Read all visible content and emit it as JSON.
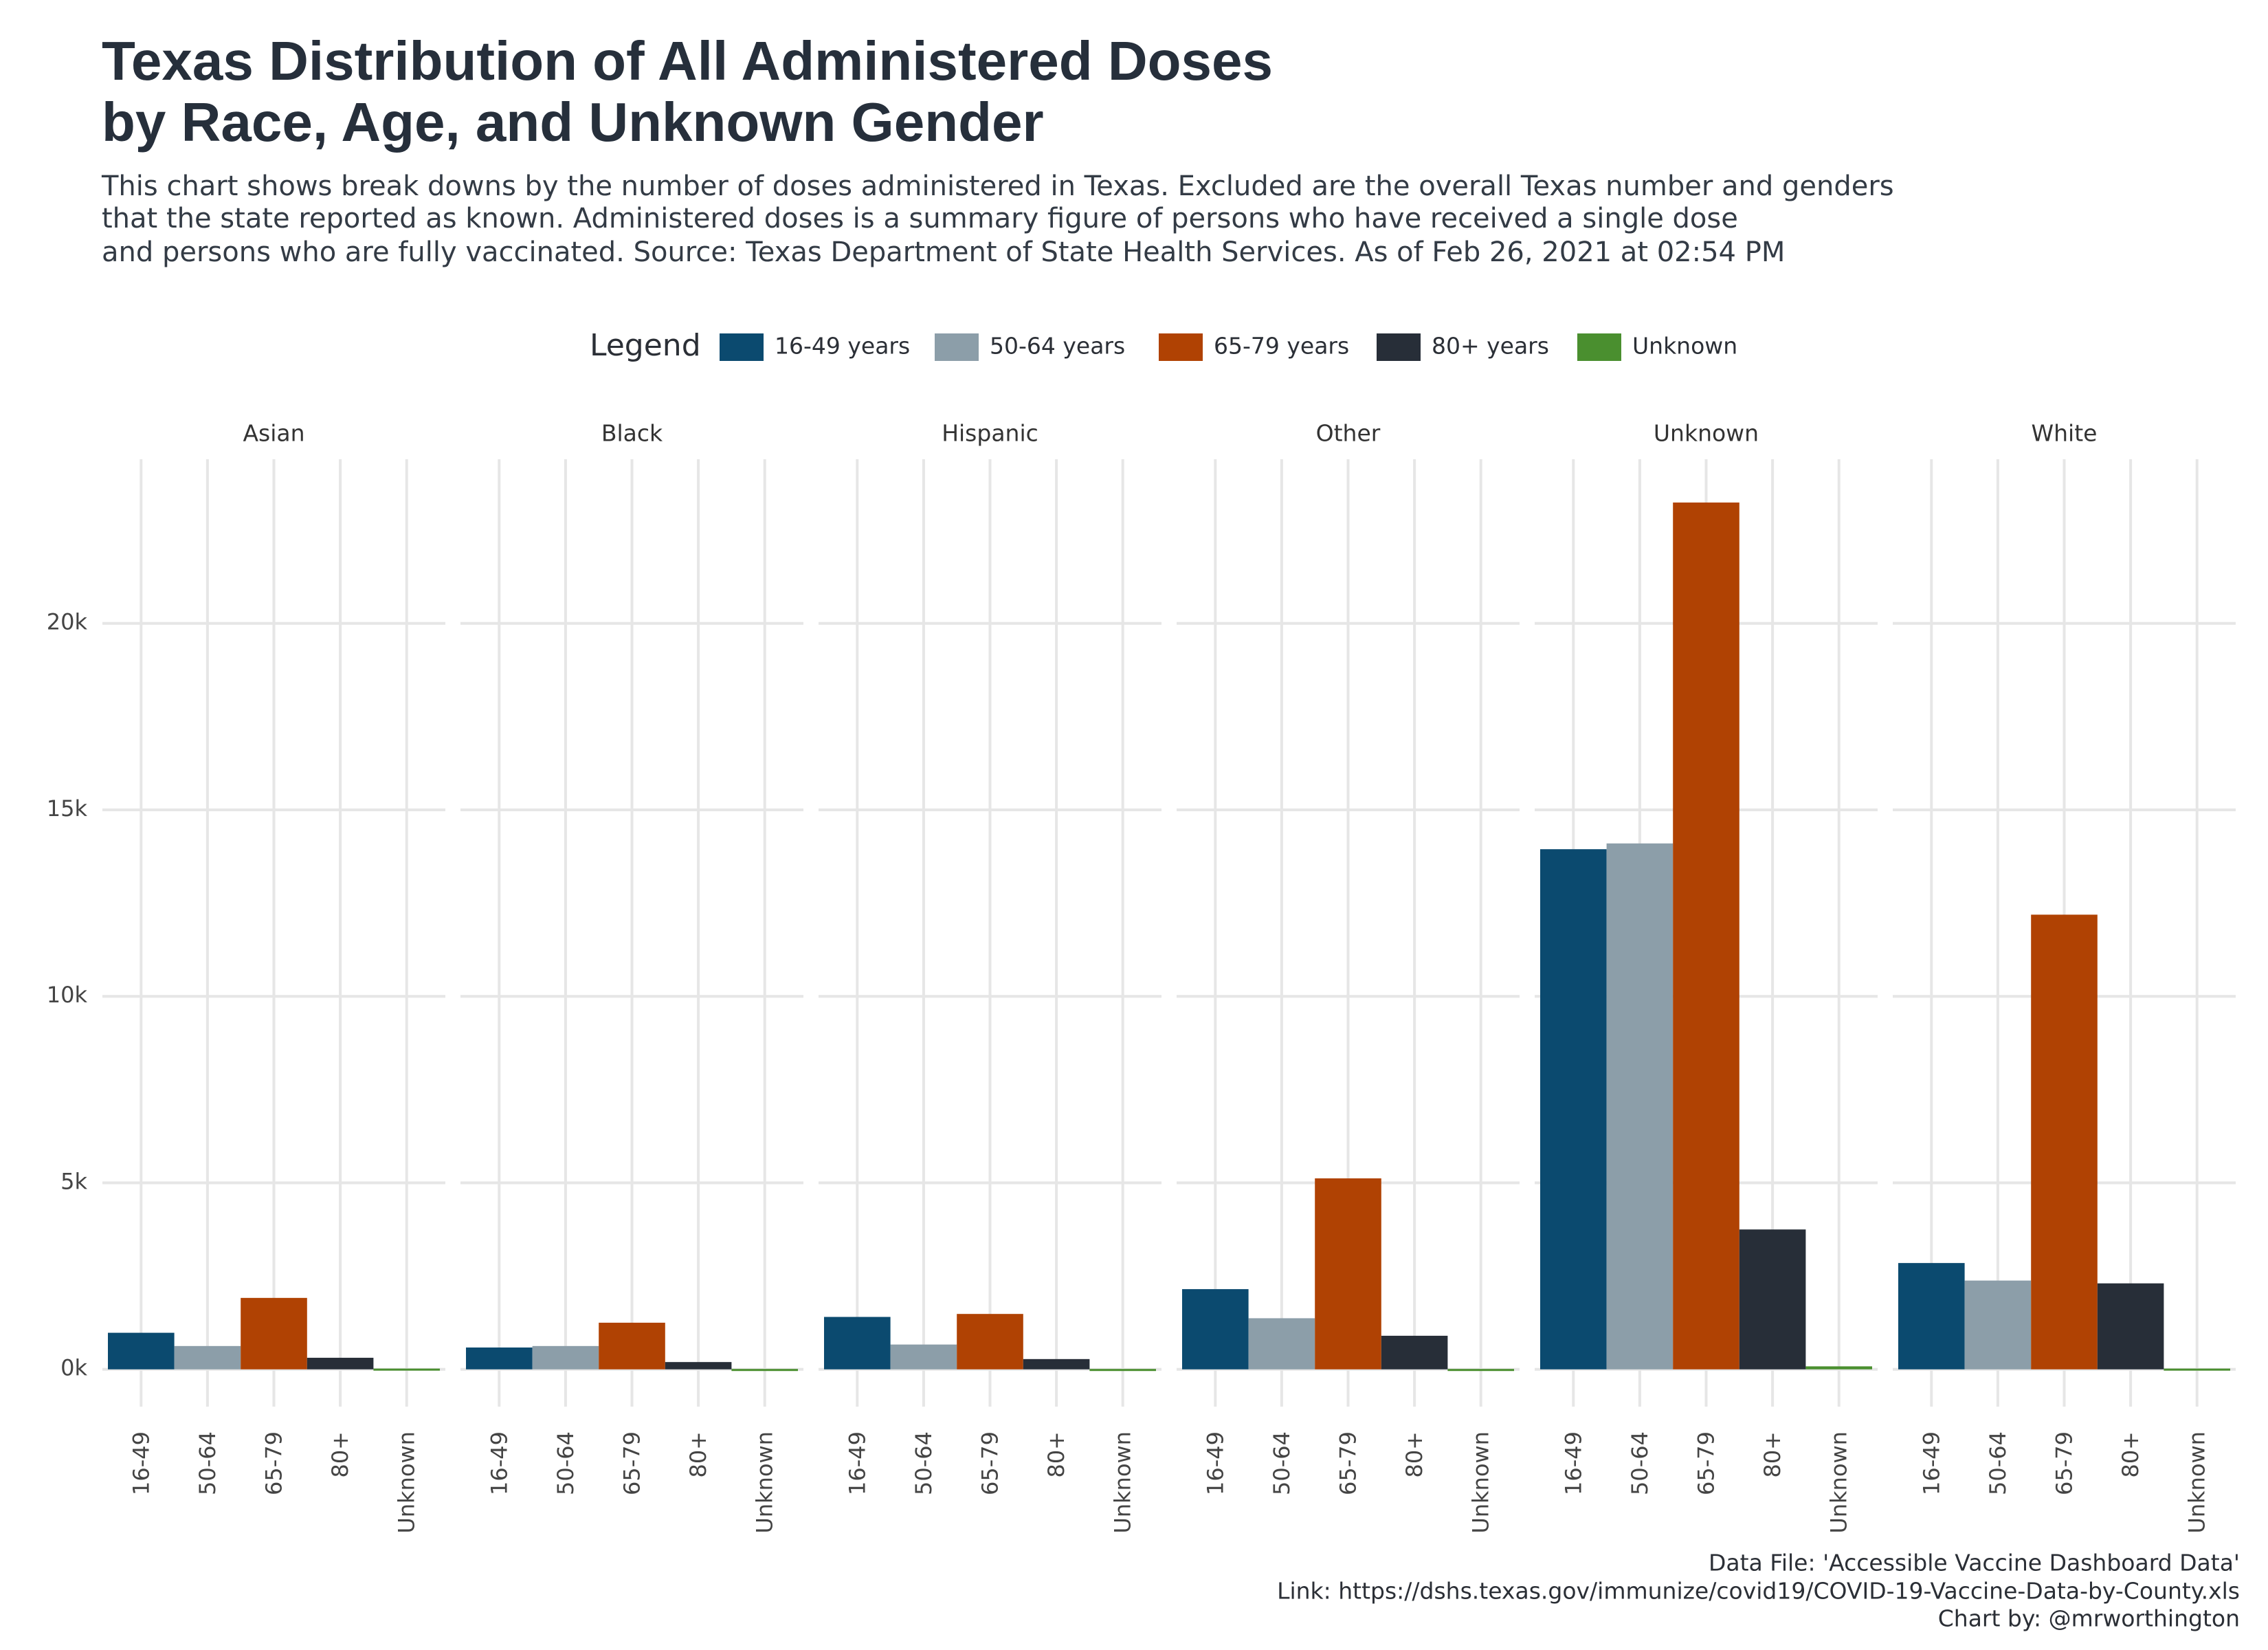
{
  "chart_data": {
    "type": "bar",
    "title": [
      "Texas Distribution of All Administered Doses",
      "by Race, Age, and Unknown Gender"
    ],
    "subtitle": [
      "This chart shows break downs by the number of doses administered in Texas. Excluded are the overall Texas number and genders",
      "that the state reported as known. Administered doses is a summary figure of persons who have received a single dose",
      "and persons who are fully vaccinated. Source: Texas Department of State Health Services. As of Feb 26, 2021 at 02:54 PM"
    ],
    "legend": {
      "title": "Legend",
      "position": "top",
      "entries": [
        {
          "name": "16-49 years",
          "color": "#0b4a6f"
        },
        {
          "name": "50-64 years",
          "color": "#8c9ea9"
        },
        {
          "name": "65-79 years",
          "color": "#b04203"
        },
        {
          "name": "80+ years",
          "color": "#272e38"
        },
        {
          "name": "Unknown",
          "color": "#4a8f2f"
        }
      ]
    },
    "categories": [
      "16-49",
      "50-64",
      "65-79",
      "80+",
      "Unknown"
    ],
    "facets": [
      {
        "name": "Asian",
        "values": [
          980,
          625,
          1915,
          310,
          20
        ]
      },
      {
        "name": "Black",
        "values": [
          585,
          625,
          1250,
          195,
          10
        ]
      },
      {
        "name": "Hispanic",
        "values": [
          1405,
          665,
          1485,
          275,
          10
        ]
      },
      {
        "name": "Other",
        "values": [
          2150,
          1370,
          5120,
          900,
          10
        ]
      },
      {
        "name": "Unknown",
        "values": [
          13945,
          14100,
          23240,
          3750,
          80
        ]
      },
      {
        "name": "White",
        "values": [
          2850,
          2380,
          12190,
          2305,
          20
        ]
      }
    ],
    "ylim": [
      -1000,
      24400
    ],
    "yticks": [
      {
        "value": 0,
        "label": "0k"
      },
      {
        "value": 5000,
        "label": "5k"
      },
      {
        "value": 10000,
        "label": "10k"
      },
      {
        "value": 15000,
        "label": "15k"
      },
      {
        "value": 20000,
        "label": "20k"
      }
    ],
    "grid": true,
    "notes": [
      "Data File: 'Accessible Vaccine Dashboard Data'",
      "Link: https://dshs.texas.gov/immunize/covid19/COVID-19-Vaccine-Data-by-County.xls",
      "Chart by: @mrworthington"
    ]
  }
}
